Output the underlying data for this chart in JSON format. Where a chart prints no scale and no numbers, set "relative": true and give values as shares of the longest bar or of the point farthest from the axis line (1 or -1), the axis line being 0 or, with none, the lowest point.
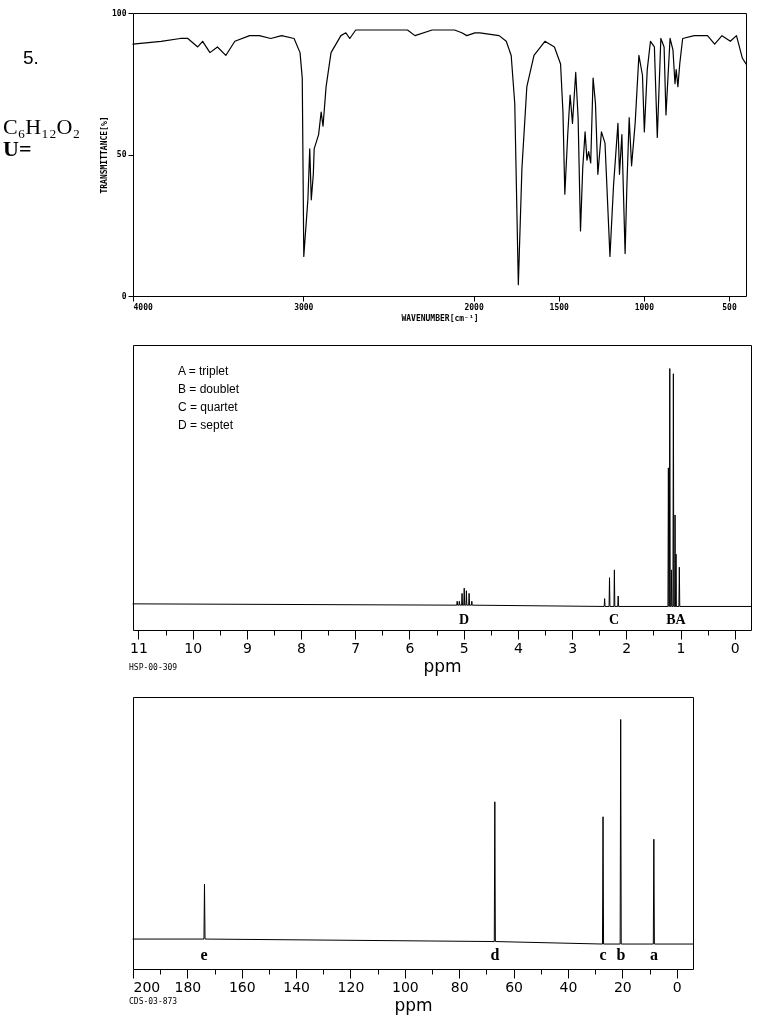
{
  "chart_data": [
    {
      "type": "line",
      "xlabel": "WAVENUMBER[cm⁻¹]",
      "ylabel": "TRANSMITTANCE[%]",
      "annotations": [
        "5.",
        "C₆H₁₂O₂",
        "U="
      ],
      "xlim": [
        4000,
        400
      ],
      "xticks": [
        4000,
        3000,
        2000,
        1500,
        1000,
        500
      ],
      "ylim": [
        0,
        100
      ],
      "yticks": [
        0,
        50,
        100
      ],
      "x": [
        4000,
        3835,
        3722,
        3678,
        3620,
        3591,
        3548,
        3504,
        3455,
        3402,
        3315,
        3258,
        3191,
        3127,
        3054,
        3019,
        3006,
        2997,
        2973,
        2962,
        2953,
        2941,
        2936,
        2910,
        2895,
        2884,
        2866,
        2837,
        2779,
        2750,
        2727,
        2692,
        2388,
        2344,
        2243,
        2112,
        2069,
        2040,
        1992,
        1963,
        1850,
        1808,
        1779,
        1758,
        1737,
        1716,
        1687,
        1645,
        1581,
        1525,
        1489,
        1475,
        1464,
        1447,
        1433,
        1419,
        1400,
        1386,
        1372,
        1359,
        1345,
        1334,
        1324,
        1312,
        1298,
        1284,
        1270,
        1249,
        1228,
        1199,
        1178,
        1152,
        1143,
        1129,
        1110,
        1100,
        1086,
        1072,
        1051,
        1029,
        1008,
        997,
        980,
        961,
        938,
        921,
        900,
        881,
        870,
        846,
        829,
        817,
        810,
        800,
        789,
        772,
        704,
        626,
        584,
        541,
        492,
        456,
        421,
        400
      ],
      "series": [
        {
          "color": "#000000",
          "values": [
            89,
            90,
            91,
            91,
            88,
            90,
            86,
            88,
            85,
            90,
            92,
            92,
            91,
            92,
            91,
            86,
            77,
            14,
            34,
            52,
            34,
            43,
            52,
            57,
            65,
            60,
            74,
            86,
            92,
            93,
            91,
            94,
            94,
            92,
            94,
            94,
            93,
            92,
            93,
            93,
            92,
            90,
            85,
            68,
            4,
            45,
            74,
            85,
            90,
            88,
            82,
            65,
            36,
            57,
            71,
            61,
            79,
            63,
            23,
            45,
            58,
            48,
            51,
            47,
            77,
            68,
            43,
            58,
            54,
            14,
            39,
            61,
            43,
            57,
            15,
            38,
            63,
            46,
            61,
            85,
            78,
            58,
            80,
            90,
            88,
            56,
            91,
            88,
            64,
            91,
            87,
            75,
            80,
            74,
            82,
            91,
            92,
            92,
            89,
            92,
            90,
            92,
            84,
            82
          ]
        }
      ]
    },
    {
      "type": "line",
      "relative": true,
      "xlabel": "ppm",
      "tick_labels": "x",
      "annotations": [
        "A = triplet",
        "B = doublet",
        "C = quartet",
        "D = septet",
        "HSP-00-309",
        "D",
        "C",
        "BA"
      ],
      "xlim": [
        11.1,
        -0.3
      ],
      "xticks": [
        11,
        {
          "value": 10.5,
          "label": null
        },
        10,
        {
          "value": 9.5,
          "label": null
        },
        9,
        {
          "value": 8.5,
          "label": null
        },
        8,
        {
          "value": 7.5,
          "label": null
        },
        7,
        {
          "value": 6.5,
          "label": null
        },
        6,
        {
          "value": 5.5,
          "label": null
        },
        5,
        {
          "value": 4.5,
          "label": null
        },
        4,
        {
          "value": 3.5,
          "label": null
        },
        3,
        {
          "value": 2.5,
          "label": null
        },
        2,
        {
          "value": 1.5,
          "label": null
        },
        1,
        {
          "value": 0.5,
          "label": null
        },
        0
      ],
      "x": [
        11.1,
        5.128,
        5.12,
        5.112,
        5.088,
        5.08,
        5.072,
        5.038,
        5.03,
        5.022,
        4.998,
        4.99,
        4.982,
        4.958,
        4.95,
        4.942,
        4.908,
        4.9,
        4.892,
        4.858,
        4.85,
        4.842,
        2.408,
        2.4,
        2.392,
        2.318,
        2.31,
        2.302,
        2.228,
        2.22,
        2.212,
        2.158,
        2.15,
        2.142,
        1.232,
        1.224,
        1.216,
        1.206,
        1.198,
        1.19,
        1.177,
        1.169,
        1.161,
        1.14,
        1.132,
        1.124,
        1.106,
        1.101,
        1.096,
        1.088,
        1.083,
        1.078,
        1.03,
        1.022,
        1.014,
        -0.3
      ],
      "series": [
        {
          "color": "#000000",
          "values": [
            0.1,
            0.095,
            0.11,
            0.095,
            0.095,
            0.11,
            0.095,
            0.095,
            0.14,
            0.095,
            0.095,
            0.16,
            0.095,
            0.095,
            0.15,
            0.095,
            0.095,
            0.14,
            0.095,
            0.095,
            0.11,
            0.095,
            0.09,
            0.12,
            0.09,
            0.09,
            0.2,
            0.09,
            0.09,
            0.23,
            0.09,
            0.09,
            0.13,
            0.09,
            0.09,
            0.62,
            0.09,
            0.09,
            1,
            0.09,
            0.09,
            0.23,
            0.09,
            0.09,
            0.98,
            0.09,
            0.09,
            0.44,
            0.09,
            0.09,
            0.29,
            0.09,
            0.09,
            0.24,
            0.09,
            0.09
          ]
        }
      ]
    },
    {
      "type": "line",
      "relative": true,
      "xlabel": "ppm",
      "tick_labels": "x",
      "annotations": [
        "CDS-03-873",
        "e",
        "d",
        "c",
        "b",
        "a"
      ],
      "xlim": [
        200,
        -6
      ],
      "xticks": [
        200,
        {
          "value": 190,
          "label": null
        },
        180,
        {
          "value": 170,
          "label": null
        },
        160,
        {
          "value": 150,
          "label": null
        },
        140,
        {
          "value": 130,
          "label": null
        },
        120,
        {
          "value": 110,
          "label": null
        },
        100,
        {
          "value": 90,
          "label": null
        },
        80,
        {
          "value": 70,
          "label": null
        },
        60,
        {
          "value": 50,
          "label": null
        },
        40,
        {
          "value": 30,
          "label": null
        },
        20,
        {
          "value": 10,
          "label": null
        },
        0
      ],
      "x": [
        200,
        173.9,
        173.7,
        173.5,
        67.1,
        66.9,
        66.7,
        27.3,
        27.1,
        26.9,
        20.8,
        20.6,
        20.4,
        8.6,
        8.4,
        8.2,
        -6
      ],
      "series": [
        {
          "color": "#000000",
          "values": [
            0.12,
            0.12,
            0.34,
            0.12,
            0.11,
            0.67,
            0.11,
            0.1,
            0.61,
            0.1,
            0.1,
            1,
            0.1,
            0.1,
            0.52,
            0.1,
            0.1
          ]
        }
      ]
    }
  ]
}
